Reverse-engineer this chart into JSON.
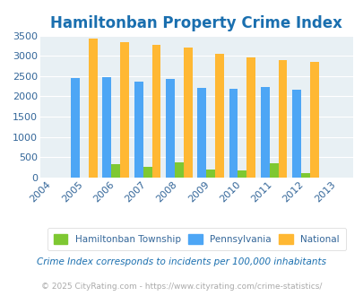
{
  "title": "Hamiltonban Property Crime Index",
  "years": [
    2004,
    2005,
    2006,
    2007,
    2008,
    2009,
    2010,
    2011,
    2012,
    2013
  ],
  "hamiltonban": [
    0,
    0,
    330,
    255,
    375,
    190,
    175,
    350,
    110,
    0
  ],
  "pennsylvania": [
    0,
    2460,
    2480,
    2375,
    2440,
    2200,
    2185,
    2230,
    2155,
    0
  ],
  "national": [
    0,
    3415,
    3340,
    3265,
    3205,
    3040,
    2960,
    2895,
    2855,
    0
  ],
  "bar_width": 0.28,
  "colors": {
    "hamiltonban": "#7ec832",
    "pennsylvania": "#4da6f5",
    "national": "#ffb833"
  },
  "plot_bg": "#e8f0f4",
  "ylim": [
    0,
    3500
  ],
  "yticks": [
    0,
    500,
    1000,
    1500,
    2000,
    2500,
    3000,
    3500
  ],
  "legend_labels": [
    "Hamiltonban Township",
    "Pennsylvania",
    "National"
  ],
  "footer_text": "Crime Index corresponds to incidents per 100,000 inhabitants",
  "copyright_text": "© 2025 CityRating.com - https://www.cityrating.com/crime-statistics/",
  "title_color": "#1a6faf",
  "tick_color": "#336699",
  "footer_color": "#1a6faf",
  "copyright_color": "#aaaaaa"
}
